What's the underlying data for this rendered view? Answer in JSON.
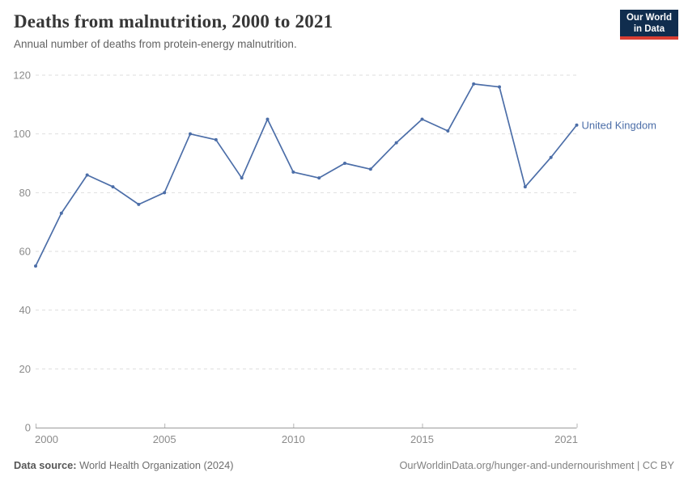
{
  "header": {
    "title": "Deaths from malnutrition, 2000 to 2021",
    "subtitle": "Annual number of deaths from protein-energy malnutrition.",
    "logo": {
      "line1": "Our World",
      "line2": "in Data"
    }
  },
  "chart_data": {
    "type": "line",
    "title": "Deaths from malnutrition, 2000 to 2021",
    "xlabel": "",
    "ylabel": "",
    "x": [
      2000,
      2001,
      2002,
      2003,
      2004,
      2005,
      2006,
      2007,
      2008,
      2009,
      2010,
      2011,
      2012,
      2013,
      2014,
      2015,
      2016,
      2017,
      2018,
      2019,
      2020,
      2021
    ],
    "series": [
      {
        "name": "United Kingdom",
        "color": "#4C6EA8",
        "values": [
          55,
          73,
          86,
          82,
          76,
          80,
          100,
          98,
          85,
          105,
          87,
          85,
          90,
          88,
          97,
          105,
          101,
          117,
          116,
          82,
          92,
          103
        ]
      }
    ],
    "ylim": [
      0,
      120
    ],
    "yticks": [
      0,
      20,
      40,
      60,
      80,
      100,
      120
    ],
    "xticks": [
      2000,
      2005,
      2010,
      2015,
      2021
    ],
    "grid": true,
    "legend_position": "end-of-line"
  },
  "footer": {
    "source_label": "Data source:",
    "source_value": "World Health Organization (2024)",
    "credit": "OurWorldinData.org/hunger-and-undernourishment | CC BY"
  },
  "colors": {
    "accent_line": "#4C6EA8",
    "logo_bg": "#102D4E",
    "logo_stripe": "#D93E32",
    "gridline": "#dedede",
    "axis": "#9a9a9a",
    "tick_label": "#8b8b8b"
  }
}
